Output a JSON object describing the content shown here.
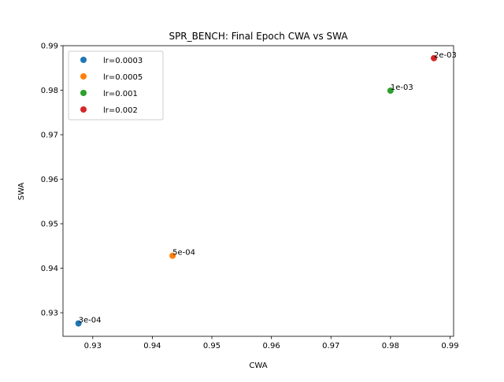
{
  "chart_data": {
    "type": "scatter",
    "title": "SPR_BENCH: Final Epoch CWA vs SWA",
    "xlabel": "CWA",
    "ylabel": "SWA",
    "xlim": [
      0.925,
      0.9906
    ],
    "ylim": [
      0.9247,
      0.99
    ],
    "xticks": [
      "0.93",
      "0.94",
      "0.95",
      "0.96",
      "0.97",
      "0.98",
      "0.99"
    ],
    "yticks": [
      "0.93",
      "0.94",
      "0.95",
      "0.96",
      "0.97",
      "0.98",
      "0.99"
    ],
    "grid": false,
    "legend_position": "upper-left",
    "series": [
      {
        "name": "lr=0.0003",
        "color": "#1f77b4",
        "x": 0.9276,
        "y": 0.9276,
        "label": "3e-04"
      },
      {
        "name": "lr=0.0005",
        "color": "#ff7f0e",
        "x": 0.9434,
        "y": 0.9428,
        "label": "5e-04"
      },
      {
        "name": "lr=0.001",
        "color": "#2ca02c",
        "x": 0.98,
        "y": 0.9799,
        "label": "1e-03"
      },
      {
        "name": "lr=0.002",
        "color": "#d62728",
        "x": 0.9873,
        "y": 0.9872,
        "label": "2e-03"
      }
    ]
  }
}
